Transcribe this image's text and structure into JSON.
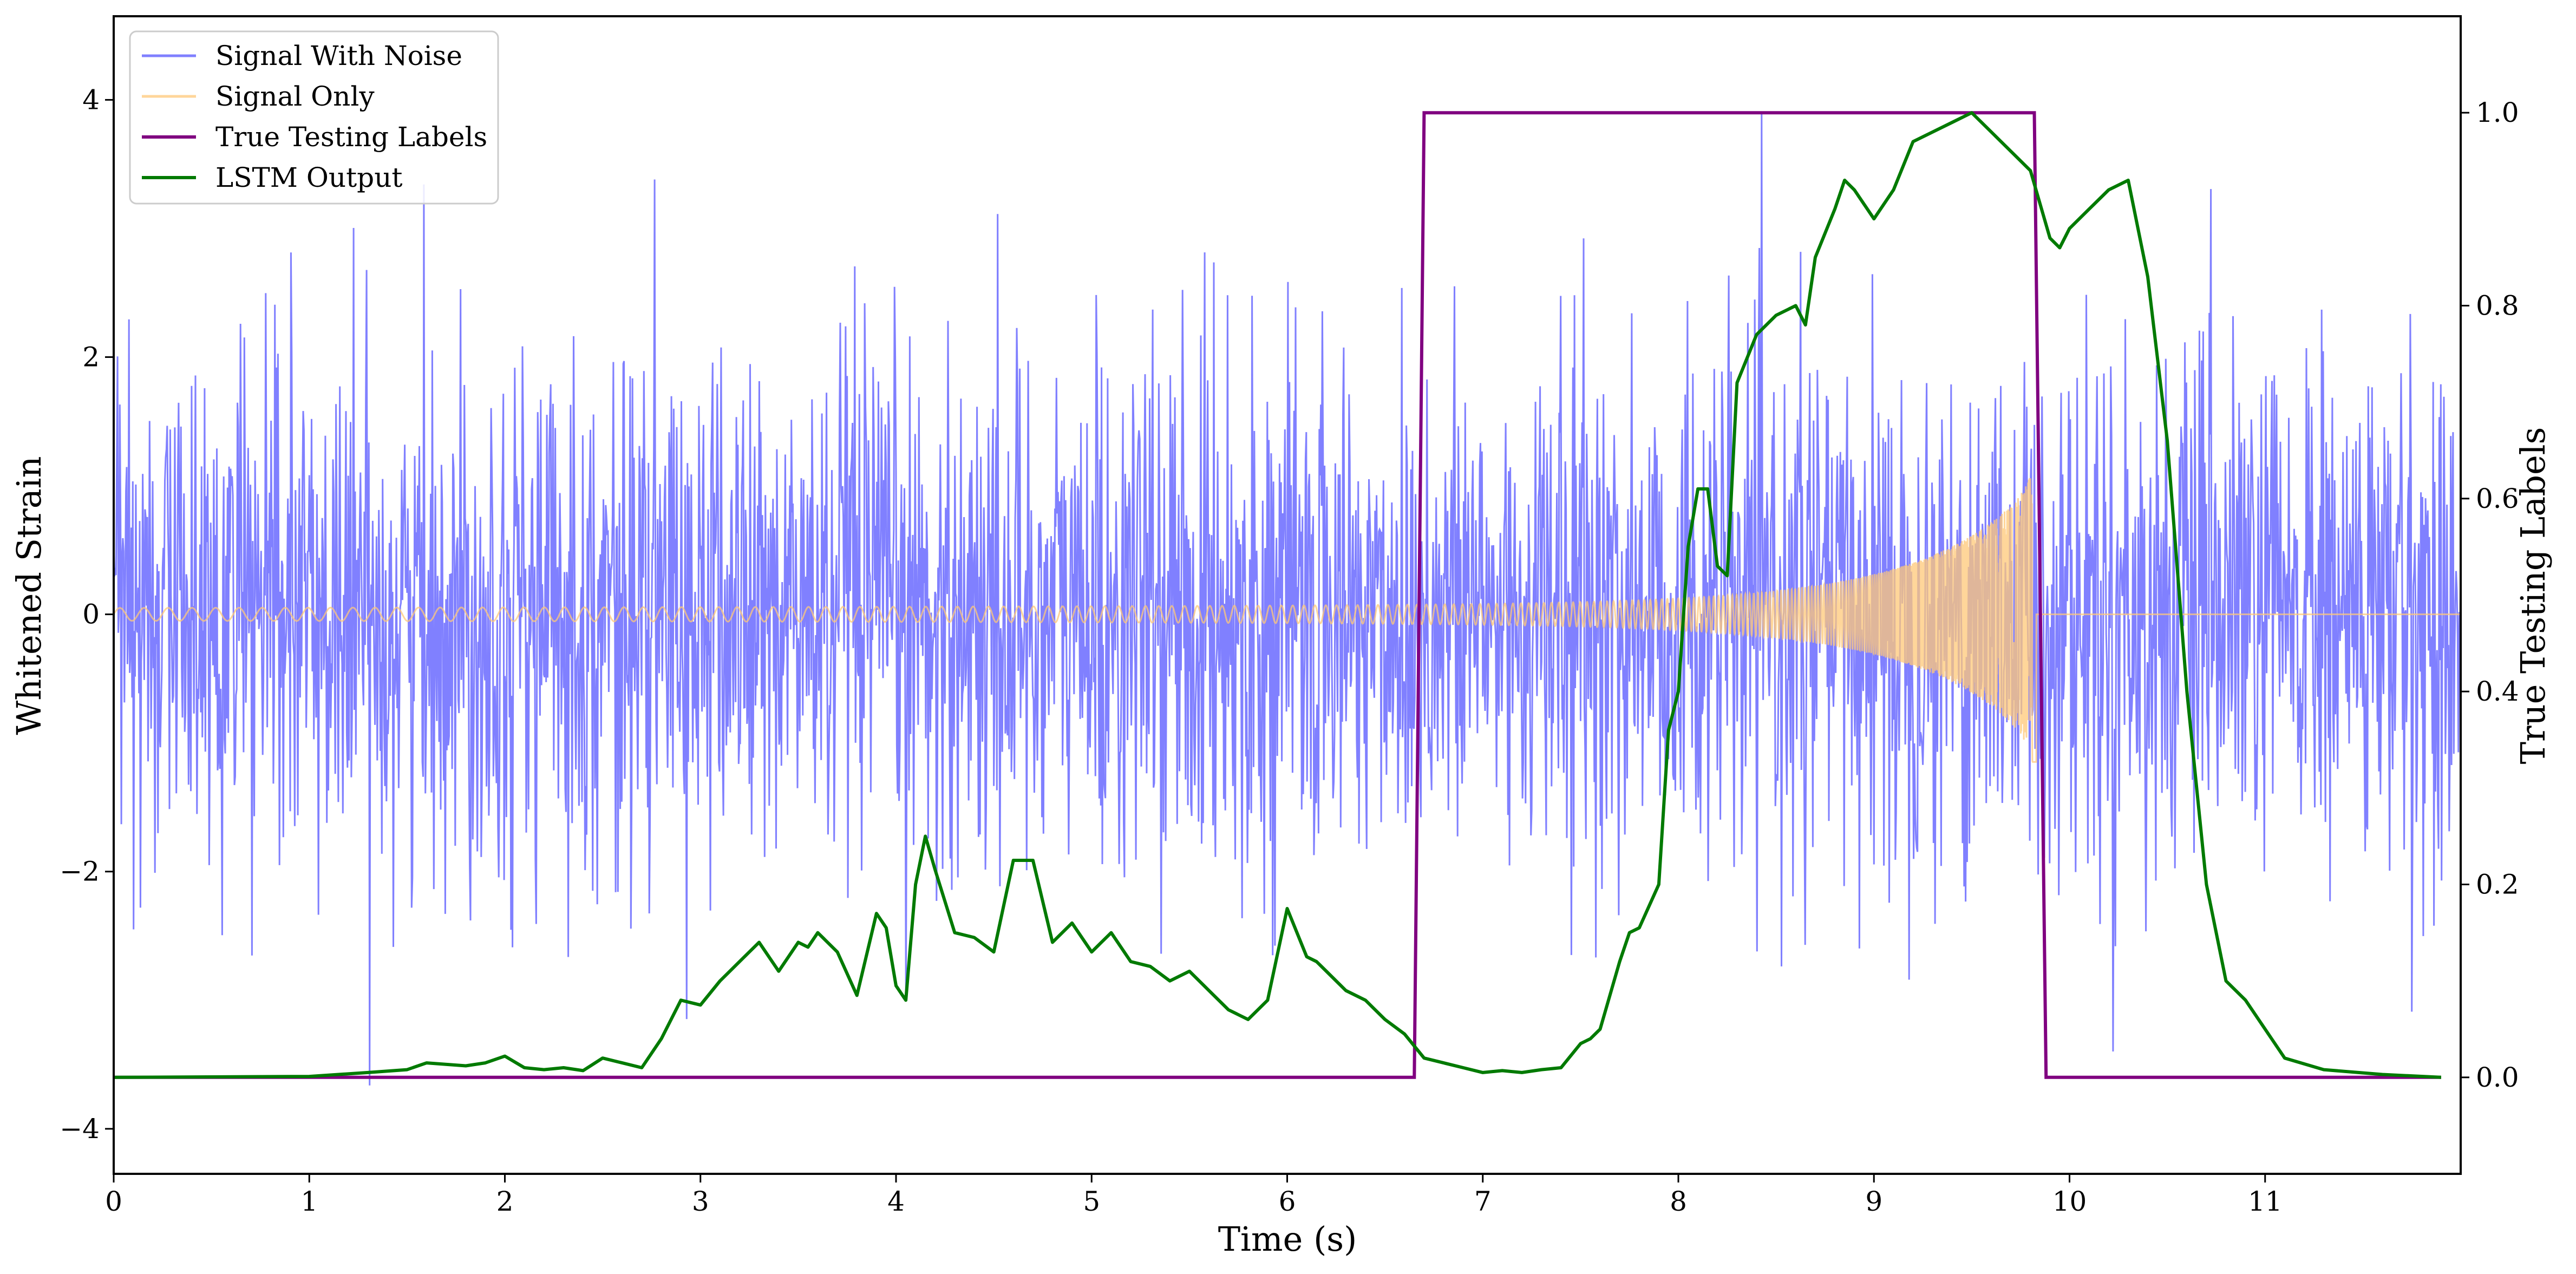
{
  "chart_data": {
    "type": "line",
    "xlabel": "Time (s)",
    "ylabel": "Whitened Strain",
    "y2label": "True Testing Labels",
    "xlim": [
      0,
      12
    ],
    "ylim": [
      -4.35,
      4.65
    ],
    "y2lim": [
      -0.1,
      1.1
    ],
    "xticks": [
      0,
      1,
      2,
      3,
      4,
      5,
      6,
      7,
      8,
      9,
      10,
      11
    ],
    "yticks": [
      -4,
      -2,
      0,
      2,
      4
    ],
    "y2ticks": [
      0.0,
      0.2,
      0.4,
      0.6,
      0.8,
      1.0
    ],
    "ytick_labels": [
      "−4",
      "−2",
      "0",
      "2",
      "4"
    ],
    "y2tick_labels": [
      "0.0",
      "0.2",
      "0.4",
      "0.6",
      "0.8",
      "1.0"
    ],
    "grid": false,
    "legend_position": "top-left",
    "series": [
      {
        "name": "Signal With Noise",
        "axis": "left",
        "color": "#8080ff",
        "kind": "noise",
        "sample_rate_hz": 256,
        "std": 1.0,
        "range": [
          -3.95,
          4.25
        ]
      },
      {
        "name": "Signal Only",
        "axis": "left",
        "color": "#ffc878",
        "kind": "chirp",
        "start_time": 0.0,
        "merger_time": 9.83,
        "end_time": 12.0,
        "amplitude_start": 0.05,
        "amplitude_merger": 1.15
      },
      {
        "name": "True Testing Labels",
        "axis": "right",
        "color": "#800080",
        "x": [
          0.0,
          6.65,
          6.7,
          9.82,
          9.88,
          11.9
        ],
        "y": [
          0.0,
          0.0,
          1.0,
          1.0,
          0.0,
          0.0
        ]
      },
      {
        "name": "LSTM Output",
        "axis": "right",
        "color": "#007a00",
        "x": [
          0.0,
          1.0,
          1.3,
          1.5,
          1.6,
          1.8,
          1.9,
          2.0,
          2.1,
          2.2,
          2.3,
          2.4,
          2.5,
          2.6,
          2.7,
          2.8,
          2.9,
          3.0,
          3.1,
          3.2,
          3.3,
          3.4,
          3.5,
          3.55,
          3.6,
          3.7,
          3.8,
          3.9,
          3.95,
          4.0,
          4.05,
          4.1,
          4.15,
          4.2,
          4.3,
          4.4,
          4.5,
          4.6,
          4.65,
          4.7,
          4.8,
          4.9,
          5.0,
          5.1,
          5.2,
          5.3,
          5.4,
          5.5,
          5.6,
          5.7,
          5.8,
          5.9,
          6.0,
          6.1,
          6.15,
          6.2,
          6.3,
          6.4,
          6.5,
          6.6,
          6.7,
          6.8,
          6.9,
          7.0,
          7.1,
          7.2,
          7.3,
          7.4,
          7.5,
          7.55,
          7.6,
          7.7,
          7.75,
          7.8,
          7.9,
          7.95,
          8.0,
          8.05,
          8.1,
          8.15,
          8.2,
          8.25,
          8.3,
          8.4,
          8.5,
          8.6,
          8.65,
          8.7,
          8.8,
          8.85,
          8.9,
          9.0,
          9.1,
          9.2,
          9.3,
          9.4,
          9.5,
          9.6,
          9.7,
          9.8,
          9.9,
          9.95,
          10.0,
          10.1,
          10.2,
          10.3,
          10.4,
          10.5,
          10.6,
          10.7,
          10.8,
          10.9,
          11.0,
          11.1,
          11.3,
          11.6,
          11.9
        ],
        "y": [
          0.0,
          0.001,
          0.005,
          0.008,
          0.015,
          0.012,
          0.015,
          0.022,
          0.01,
          0.008,
          0.01,
          0.007,
          0.02,
          0.015,
          0.01,
          0.04,
          0.08,
          0.075,
          0.1,
          0.12,
          0.14,
          0.11,
          0.14,
          0.135,
          0.15,
          0.13,
          0.085,
          0.17,
          0.155,
          0.095,
          0.08,
          0.2,
          0.25,
          0.215,
          0.15,
          0.145,
          0.13,
          0.225,
          0.225,
          0.225,
          0.14,
          0.16,
          0.13,
          0.15,
          0.12,
          0.115,
          0.1,
          0.11,
          0.09,
          0.07,
          0.06,
          0.08,
          0.175,
          0.125,
          0.12,
          0.11,
          0.09,
          0.08,
          0.06,
          0.045,
          0.02,
          0.015,
          0.01,
          0.005,
          0.007,
          0.005,
          0.008,
          0.01,
          0.035,
          0.04,
          0.05,
          0.12,
          0.15,
          0.155,
          0.2,
          0.36,
          0.4,
          0.55,
          0.61,
          0.61,
          0.53,
          0.52,
          0.72,
          0.77,
          0.79,
          0.8,
          0.78,
          0.85,
          0.9,
          0.93,
          0.92,
          0.89,
          0.92,
          0.97,
          0.98,
          0.99,
          1.0,
          0.98,
          0.96,
          0.94,
          0.87,
          0.86,
          0.88,
          0.9,
          0.92,
          0.93,
          0.83,
          0.66,
          0.4,
          0.2,
          0.1,
          0.08,
          0.05,
          0.02,
          0.008,
          0.003,
          0.0
        ]
      }
    ]
  }
}
